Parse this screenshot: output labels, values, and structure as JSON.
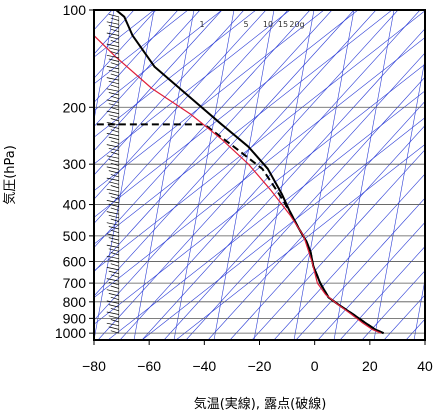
{
  "chart_data": {
    "type": "line",
    "subtype": "emagram",
    "xlabel": "気温(実線), 露点(破線)",
    "ylabel": "気圧(hPa)",
    "xlim": [
      -80,
      40
    ],
    "ylim": [
      1050,
      100
    ],
    "y_scale": "log",
    "x_ticks": [
      -80,
      -60,
      -40,
      -20,
      0,
      20,
      40
    ],
    "y_ticks": [
      100,
      200,
      300,
      400,
      500,
      600,
      700,
      800,
      900,
      1000
    ],
    "mixing_ratio_labels": [
      "1",
      "5",
      "10",
      "15",
      "20g"
    ],
    "colors": {
      "temperature": "#000000",
      "dewpoint": "#000000",
      "parcel": "#e0203a",
      "guide_lines": "#2a3bd6",
      "grid": "#555555"
    },
    "series": [
      {
        "role": "temperature",
        "style": "solid",
        "points": [
          [
            25,
            1000
          ],
          [
            22,
            975
          ],
          [
            18,
            925
          ],
          [
            14,
            875
          ],
          [
            9,
            820
          ],
          [
            5,
            775
          ],
          [
            2,
            700
          ],
          [
            -0.5,
            620
          ],
          [
            -1.5,
            560
          ],
          [
            -3,
            520
          ],
          [
            -6,
            470
          ],
          [
            -9,
            420
          ],
          [
            -12,
            370
          ],
          [
            -17,
            310
          ],
          [
            -24,
            265
          ],
          [
            -34,
            225
          ],
          [
            -44,
            190
          ],
          [
            -58,
            150
          ],
          [
            -66,
            120
          ],
          [
            -69,
            105
          ],
          [
            -72,
            100
          ]
        ]
      },
      {
        "role": "dewpoint",
        "style": "dashed",
        "points": [
          [
            25,
            1000
          ],
          [
            22,
            975
          ],
          [
            18,
            925
          ],
          [
            14,
            875
          ],
          [
            9,
            820
          ],
          [
            5,
            775
          ],
          [
            2,
            700
          ],
          [
            -0.5,
            620
          ],
          [
            -1.5,
            560
          ],
          [
            -3,
            520
          ],
          [
            -6,
            470
          ],
          [
            -9,
            420
          ],
          [
            -13,
            370
          ],
          [
            -19,
            310
          ],
          [
            -28,
            270
          ],
          [
            -40,
            226
          ],
          [
            -80,
            226
          ]
        ]
      },
      {
        "role": "parcel",
        "style": "solid",
        "points": [
          [
            24,
            1000
          ],
          [
            21,
            975
          ],
          [
            17,
            925
          ],
          [
            13,
            870
          ],
          [
            8,
            810
          ],
          [
            4,
            760
          ],
          [
            1,
            700
          ],
          [
            -1,
            600
          ],
          [
            -4,
            500
          ],
          [
            -9,
            430
          ],
          [
            -16,
            360
          ],
          [
            -24,
            300
          ],
          [
            -34,
            250
          ],
          [
            -45,
            210
          ],
          [
            -59,
            175
          ],
          [
            -72,
            140
          ],
          [
            -80,
            120
          ]
        ]
      }
    ],
    "wind_barbs": {
      "x": -71,
      "count": 86,
      "from_pressure": 1000,
      "to_pressure": 105
    }
  }
}
